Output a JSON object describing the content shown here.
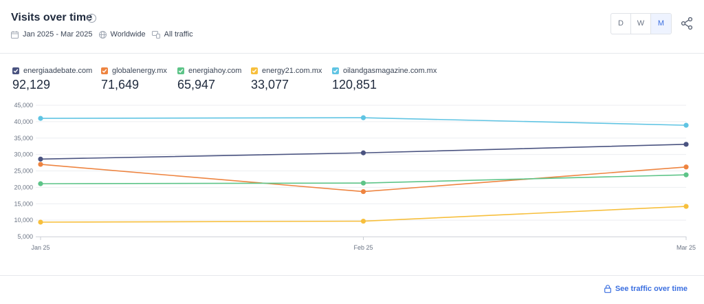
{
  "header": {
    "title": "Visits over time",
    "date_range": "Jan 2025 - Mar 2025",
    "region": "Worldwide",
    "traffic": "All traffic",
    "granularity": [
      "D",
      "W",
      "M"
    ],
    "granularity_selected": "M"
  },
  "legend": [
    {
      "name": "energiaadebate.com",
      "value": "92,129",
      "color": "#4a5380"
    },
    {
      "name": "globalenergy.mx",
      "value": "71,649",
      "color": "#ee8440"
    },
    {
      "name": "energiahoy.com",
      "value": "65,947",
      "color": "#5dc488"
    },
    {
      "name": "energy21.com.mx",
      "value": "33,077",
      "color": "#f7bf3c"
    },
    {
      "name": "oilandgasmagazine.com.mx",
      "value": "120,851",
      "color": "#5fc4e3"
    }
  ],
  "chart_data": {
    "type": "line",
    "x": [
      "Jan 25",
      "Feb 25",
      "Mar 25"
    ],
    "yticks": [
      "45,000",
      "40,000",
      "35,000",
      "30,000",
      "25,000",
      "20,000",
      "15,000",
      "10,000",
      "5,000"
    ],
    "ylim": [
      5000,
      45000
    ],
    "grid": true,
    "series": [
      {
        "name": "energiaadebate.com",
        "color": "#4a5380",
        "values": [
          28600,
          30500,
          33100
        ]
      },
      {
        "name": "globalenergy.mx",
        "color": "#ee8440",
        "values": [
          27000,
          18700,
          26200
        ]
      },
      {
        "name": "energiahoy.com",
        "color": "#5dc488",
        "values": [
          21100,
          21300,
          23800
        ]
      },
      {
        "name": "energy21.com.mx",
        "color": "#f7bf3c",
        "values": [
          9400,
          9700,
          14200
        ]
      },
      {
        "name": "oilandgasmagazine.com.mx",
        "color": "#5fc4e3",
        "values": [
          41000,
          41200,
          38900
        ]
      }
    ]
  },
  "footer": {
    "link_label": "See traffic over time"
  }
}
